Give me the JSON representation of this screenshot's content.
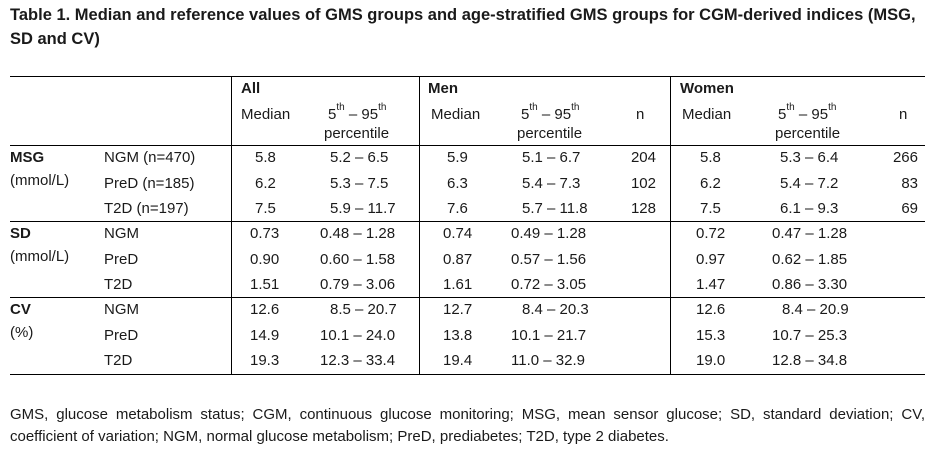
{
  "title": "Table 1. Median and reference values of GMS groups and age-stratified GMS groups for CGM-derived indices (MSG, SD and CV)",
  "groups": {
    "all": "All",
    "men": "Men",
    "women": "Women"
  },
  "subheaders": {
    "median": "Median",
    "pct_prefix_a": "5",
    "pct_sup_a": "th",
    "pct_mid": " – 95",
    "pct_sup_b": "th",
    "pct_line2": "percentile",
    "n": "n"
  },
  "sections": [
    {
      "label": "MSG",
      "unit": "(mmol/L)",
      "rows": [
        {
          "group": "NGM (n=470)",
          "all_median": "5.8",
          "all_range": "5.2 – 6.5",
          "men_median": "5.9",
          "men_range": "5.1 – 6.7",
          "men_n": "204",
          "women_median": "5.8",
          "women_range": "5.3 – 6.4",
          "women_n": "266"
        },
        {
          "group": "PreD (n=185)",
          "all_median": "6.2",
          "all_range": "5.3 – 7.5",
          "men_median": "6.3",
          "men_range": "5.4 – 7.3",
          "men_n": "102",
          "women_median": "6.2",
          "women_range": "5.4 – 7.2",
          "women_n": "83"
        },
        {
          "group": "T2D (n=197)",
          "all_median": "7.5",
          "all_range": "5.9 – 11.7",
          "men_median": "7.6",
          "men_range": "5.7 – 11.8",
          "men_n": "128",
          "women_median": "7.5",
          "women_range": "6.1 – 9.3",
          "women_n": "69"
        }
      ]
    },
    {
      "label": "SD",
      "unit": "(mmol/L)",
      "rows": [
        {
          "group": "NGM",
          "all_median": "0.73",
          "all_range": "0.48 – 1.28",
          "men_median": "0.74",
          "men_range": "0.49 – 1.28",
          "men_n": "",
          "women_median": "0.72",
          "women_range": "0.47 – 1.28",
          "women_n": ""
        },
        {
          "group": "PreD",
          "all_median": "0.90",
          "all_range": "0.60 – 1.58",
          "men_median": "0.87",
          "men_range": "0.57 – 1.56",
          "men_n": "",
          "women_median": "0.97",
          "women_range": "0.62 – 1.85",
          "women_n": ""
        },
        {
          "group": "T2D",
          "all_median": "1.51",
          "all_range": "0.79 – 3.06",
          "men_median": "1.61",
          "men_range": "0.72 – 3.05",
          "men_n": "",
          "women_median": "1.47",
          "women_range": "0.86 – 3.30",
          "women_n": ""
        }
      ]
    },
    {
      "label": "CV",
      "unit": "(%)",
      "rows": [
        {
          "group": "NGM",
          "all_median": "12.6",
          "all_range": "8.5 – 20.7",
          "men_median": "12.7",
          "men_range": "8.4 – 20.3",
          "men_n": "",
          "women_median": "12.6",
          "women_range": "8.4 – 20.9",
          "women_n": ""
        },
        {
          "group": "PreD",
          "all_median": "14.9",
          "all_range": "10.1 – 24.0",
          "men_median": "13.8",
          "men_range": "10.1 – 21.7",
          "men_n": "",
          "women_median": "15.3",
          "women_range": "10.7 – 25.3",
          "women_n": ""
        },
        {
          "group": "T2D",
          "all_median": "19.3",
          "all_range": "12.3 – 33.4",
          "men_median": "19.4",
          "men_range": "11.0 – 32.9",
          "men_n": "",
          "women_median": "19.0",
          "women_range": "12.8 – 34.8",
          "women_n": ""
        }
      ]
    }
  ],
  "footnote": "GMS, glucose metabolism status; CGM, continuous glucose monitoring; MSG, mean sensor glucose; SD, standard deviation; CV, coefficient of variation; NGM, normal glucose metabolism; PreD, prediabetes; T2D, type 2 diabetes."
}
